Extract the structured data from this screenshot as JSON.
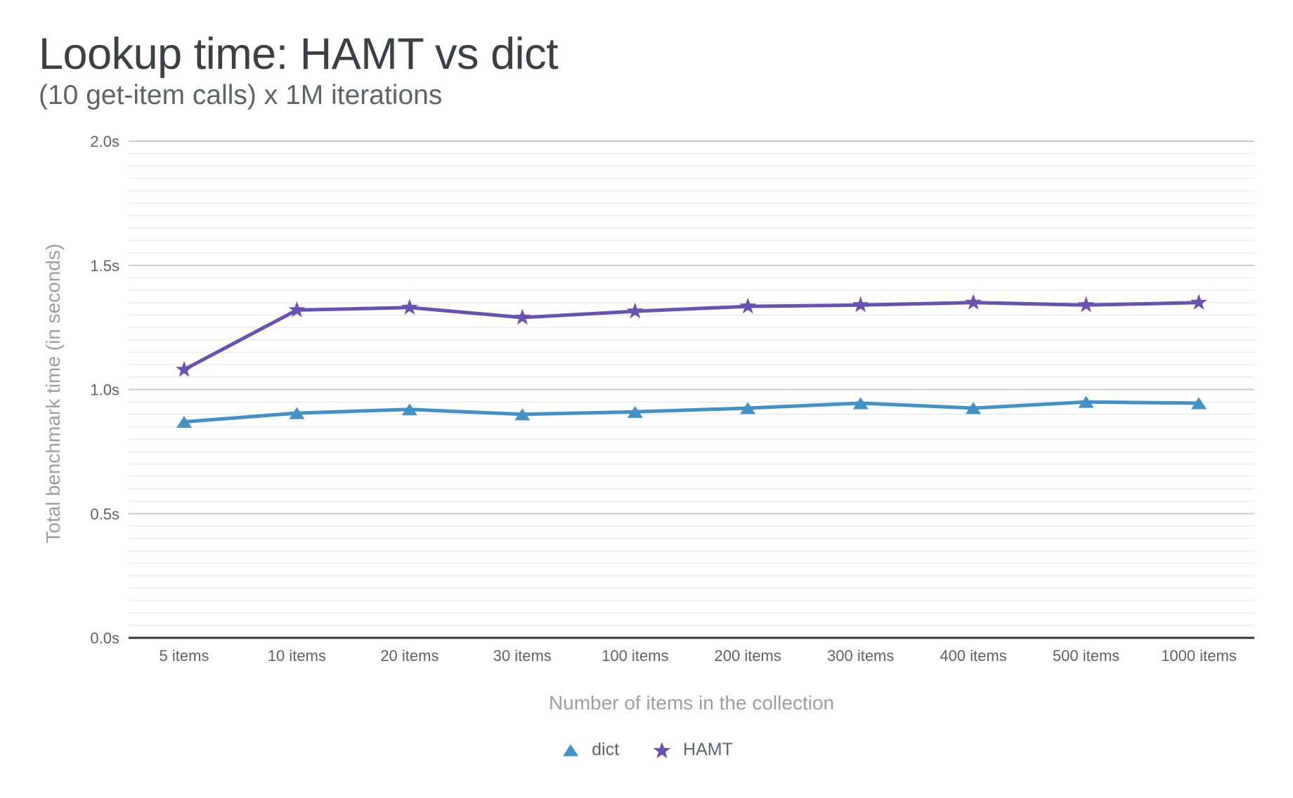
{
  "chart_data": {
    "type": "line",
    "title": "Lookup time: HAMT vs dict",
    "subtitle": "(10 get-item calls) x 1M iterations",
    "xlabel": "Number of items in the collection",
    "ylabel": "Total benchmark time (in seconds)",
    "categories": [
      "5 items",
      "10 items",
      "20 items",
      "30 items",
      "100 items",
      "200 items",
      "300 items",
      "400 items",
      "500 items",
      "1000 items"
    ],
    "series": [
      {
        "name": "dict",
        "marker": "triangle",
        "color": "#4292C6",
        "values": [
          0.87,
          0.905,
          0.92,
          0.9,
          0.91,
          0.925,
          0.945,
          0.925,
          0.95,
          0.945
        ]
      },
      {
        "name": "HAMT",
        "marker": "star",
        "color": "#6752B2",
        "values": [
          1.08,
          1.32,
          1.33,
          1.29,
          1.315,
          1.335,
          1.34,
          1.35,
          1.34,
          1.35
        ]
      }
    ],
    "ylim": [
      0,
      2
    ],
    "ytick_values": [
      0,
      0.5,
      1,
      1.5,
      2
    ],
    "ytick_labels": [
      "0.0s",
      "0.5s",
      "1.0s",
      "1.5s",
      "2.0s"
    ],
    "minor_grid_step": 0.05,
    "grid": true,
    "legend_position": "bottom-center",
    "colors": {
      "axis_line": "#333333",
      "major_grid": "#cccccc",
      "minor_grid": "#ebebeb",
      "tick_label": "#616161",
      "axis_title": "#9e9e9e",
      "title": "#3c4043",
      "subtitle": "#5f6368",
      "legend_text": "#5f6368"
    }
  }
}
